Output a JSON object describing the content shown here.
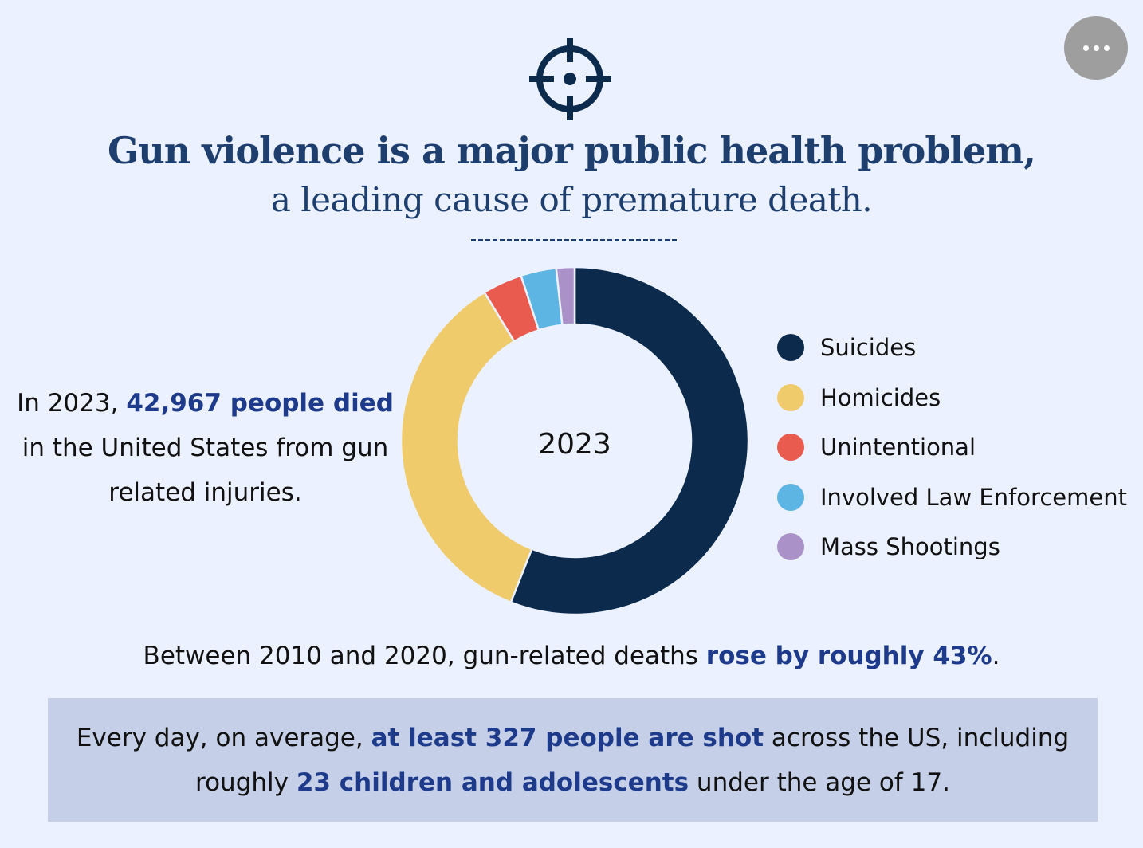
{
  "header": {
    "icon": "crosshair-target-icon",
    "title": "Gun violence is a major public health problem,",
    "subtitle": "a leading cause of premature death."
  },
  "menu_button": {
    "icon": "more-horizontal-icon"
  },
  "left_text": {
    "pre": "In 2023, ",
    "highlight": "42,967 people died",
    "post": " in the United States from gun related injuries."
  },
  "chart_data": {
    "type": "pie",
    "donut": true,
    "center_label": "2023",
    "unit": "percent (estimated from slice angles)",
    "categories": [
      "Suicides",
      "Homicides",
      "Unintentional",
      "Involved Law Enforcement",
      "Mass Shootings"
    ],
    "values": [
      56.0,
      35.3,
      3.7,
      3.3,
      1.7
    ],
    "colors": [
      "#0b2a4c",
      "#efcb6b",
      "#e85b4e",
      "#5cb5e3",
      "#aa91c8"
    ],
    "legend_position": "right"
  },
  "between_text": {
    "pre": "Between 2010 and 2020, gun-related deaths ",
    "highlight": "rose by roughly 43%",
    "post": "."
  },
  "callout": {
    "pre": "Every day, on average, ",
    "highlight1": "at least 327 people are shot",
    "mid": " across the US, including roughly ",
    "highlight2": "23 children and adolescents",
    "post": " under the age of 17."
  },
  "colors": {
    "background": "#ebf1fe",
    "heading": "#1e3f6e",
    "highlight": "#1e3a8a",
    "callout_bg": "#c5d0e8"
  }
}
